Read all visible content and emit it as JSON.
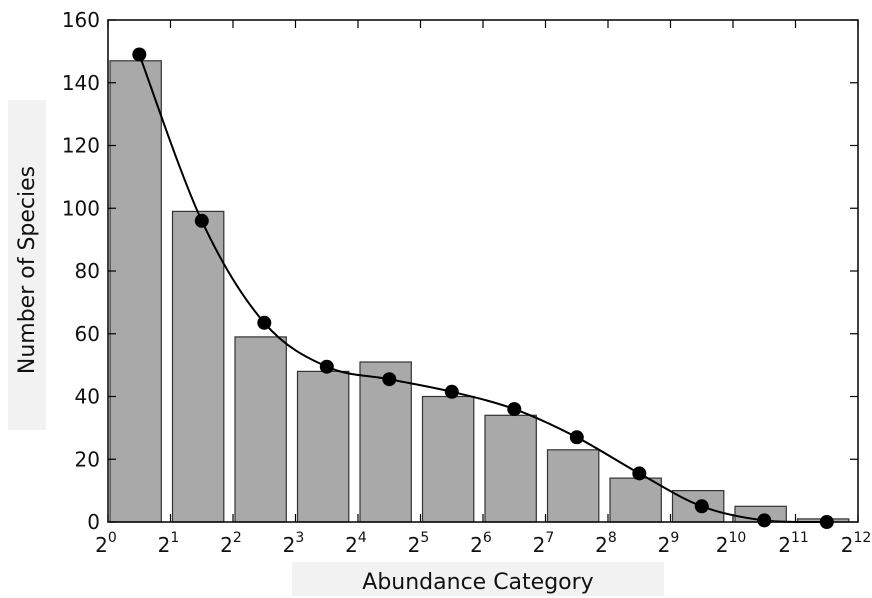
{
  "chart_data": {
    "type": "bar",
    "title": "",
    "xlabel": "Abundance Category",
    "ylabel": "Number of Species",
    "x_ticks": [
      {
        "base": "2",
        "exp": "0"
      },
      {
        "base": "2",
        "exp": "1"
      },
      {
        "base": "2",
        "exp": "2"
      },
      {
        "base": "2",
        "exp": "3"
      },
      {
        "base": "2",
        "exp": "4"
      },
      {
        "base": "2",
        "exp": "5"
      },
      {
        "base": "2",
        "exp": "6"
      },
      {
        "base": "2",
        "exp": "7"
      },
      {
        "base": "2",
        "exp": "8"
      },
      {
        "base": "2",
        "exp": "9"
      },
      {
        "base": "2",
        "exp": "10"
      },
      {
        "base": "2",
        "exp": "11"
      },
      {
        "base": "2",
        "exp": "12"
      }
    ],
    "y_ticks": [
      "0",
      "20",
      "40",
      "60",
      "80",
      "100",
      "120",
      "140",
      "160"
    ],
    "ylim": [
      0,
      160
    ],
    "x_scale": "log2",
    "xlim_exponent": [
      0,
      12
    ],
    "bars": {
      "exponent_start": [
        0,
        1,
        2,
        3,
        4,
        5,
        6,
        7,
        8,
        9,
        10,
        11
      ],
      "values": [
        147,
        99,
        59,
        48,
        51,
        40,
        34,
        23,
        14,
        10,
        5,
        1
      ],
      "color": "#a9a9a9"
    },
    "line": {
      "exponent_mid": [
        0.5,
        1.5,
        2.5,
        3.5,
        4.5,
        5.5,
        6.5,
        7.5,
        8.5,
        9.5,
        10.5,
        11.5
      ],
      "values": [
        149,
        96,
        63.5,
        49.5,
        45.5,
        41.5,
        36,
        27,
        15.5,
        5,
        0.5,
        0
      ],
      "color": "#000000"
    },
    "grid": false,
    "legend": "none"
  }
}
